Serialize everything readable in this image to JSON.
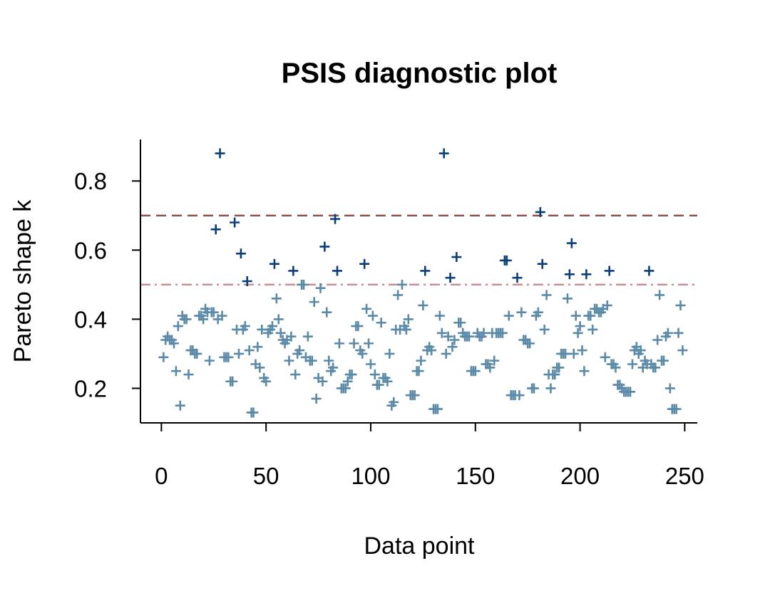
{
  "chart_data": {
    "type": "scatter",
    "title": "PSIS diagnostic plot",
    "xlabel": "Data point",
    "ylabel": "Pareto shape k",
    "xlim": [
      -10,
      256
    ],
    "ylim": [
      0.1,
      0.92
    ],
    "xticks": [
      0,
      50,
      100,
      150,
      200,
      250
    ],
    "yticks": [
      0.2,
      0.4,
      0.6,
      0.8
    ],
    "grid": false,
    "marker": "plus",
    "colors": {
      "above_threshold": "#0b3e7a",
      "below_threshold": "#5b8aa8",
      "line_0_7": "#8b4a4a",
      "line_0_5": "#c98a8f"
    },
    "thresholds": [
      {
        "value": 0.7,
        "style": "dashed"
      },
      {
        "value": 0.5,
        "style": "dashdot"
      }
    ],
    "y": [
      0.29,
      0.34,
      0.35,
      0.34,
      0.34,
      0.33,
      0.25,
      0.38,
      0.15,
      0.41,
      0.4,
      0.4,
      0.24,
      0.31,
      0.31,
      0.3,
      0.3,
      0.41,
      0.41,
      0.4,
      0.43,
      0.42,
      0.28,
      0.42,
      0.42,
      0.66,
      0.4,
      0.88,
      0.41,
      0.29,
      0.29,
      0.29,
      0.22,
      0.22,
      0.68,
      0.37,
      0.3,
      0.59,
      0.37,
      0.38,
      0.51,
      0.31,
      0.13,
      0.13,
      0.27,
      0.32,
      0.26,
      0.37,
      0.23,
      0.22,
      0.36,
      0.37,
      0.38,
      0.56,
      0.46,
      0.4,
      0.36,
      0.34,
      0.33,
      0.34,
      0.28,
      0.35,
      0.54,
      0.24,
      0.3,
      0.31,
      0.5,
      0.5,
      0.29,
      0.35,
      0.28,
      0.28,
      0.45,
      0.17,
      0.23,
      0.49,
      0.22,
      0.61,
      0.42,
      0.28,
      0.25,
      0.26,
      0.69,
      0.54,
      0.33,
      0.2,
      0.2,
      0.2,
      0.22,
      0.24,
      0.24,
      0.33,
      0.38,
      0.38,
      0.31,
      0.3,
      0.56,
      0.43,
      0.33,
      0.27,
      0.41,
      0.24,
      0.21,
      0.21,
      0.39,
      0.23,
      0.23,
      0.22,
      0.3,
      0.15,
      0.16,
      0.37,
      0.47,
      0.37,
      0.5,
      0.38,
      0.37,
      0.4,
      0.18,
      0.18,
      0.18,
      0.25,
      0.25,
      0.28,
      0.44,
      0.54,
      0.31,
      0.32,
      0.31,
      0.14,
      0.14,
      0.14,
      0.41,
      0.36,
      0.88,
      0.3,
      0.35,
      0.52,
      0.32,
      0.34,
      0.58,
      0.39,
      0.39,
      0.36,
      0.35,
      0.35,
      0.35,
      0.25,
      0.25,
      0.25,
      0.36,
      0.35,
      0.35,
      0.36,
      0.27,
      0.27,
      0.26,
      0.36,
      0.28,
      0.36,
      0.36,
      0.36,
      0.36,
      0.57,
      0.57,
      0.41,
      0.18,
      0.18,
      0.18,
      0.52,
      0.18,
      0.42,
      0.34,
      0.34,
      0.33,
      0.33,
      0.2,
      0.2,
      0.41,
      0.42,
      0.71,
      0.56,
      0.37,
      0.47,
      0.24,
      0.2,
      0.24,
      0.24,
      0.26,
      0.26,
      0.3,
      0.3,
      0.3,
      0.46,
      0.53,
      0.62,
      0.3,
      0.41,
      0.36,
      0.38,
      0.31,
      0.25,
      0.53,
      0.41,
      0.41,
      0.37,
      0.43,
      0.43,
      0.42,
      0.42,
      0.43,
      0.29,
      0.44,
      0.54,
      0.27,
      0.27,
      0.26,
      0.21,
      0.21,
      0.2,
      0.19,
      0.19,
      0.19,
      0.19,
      0.27,
      0.31,
      0.32,
      0.3,
      0.31,
      0.26,
      0.28,
      0.27,
      0.54,
      0.27,
      0.26,
      0.26,
      0.34,
      0.47,
      0.28,
      0.28,
      0.35,
      0.36,
      0.2,
      0.14,
      0.14,
      0.14,
      0.36,
      0.44,
      0.31
    ]
  }
}
